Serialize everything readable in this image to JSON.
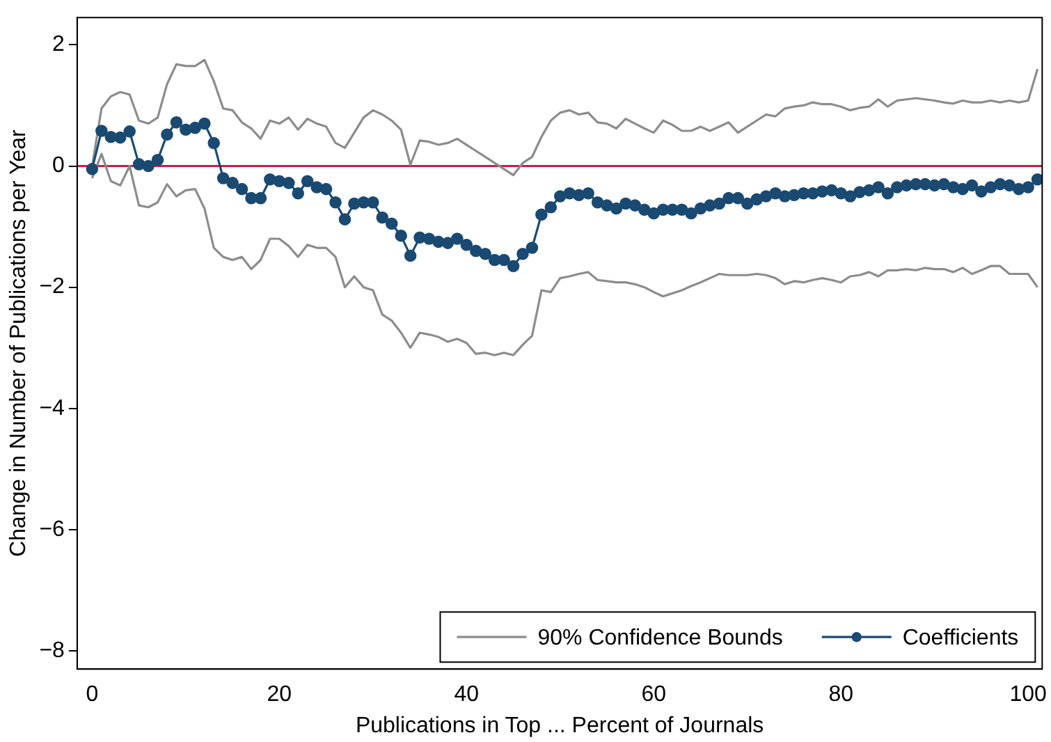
{
  "chart_data": {
    "type": "line",
    "xlabel": "Publications in Top ... Percent of Journals",
    "ylabel": "Change in Number of Publications per Year",
    "x": [
      0,
      1,
      2,
      3,
      4,
      5,
      6,
      7,
      8,
      9,
      10,
      11,
      12,
      13,
      14,
      15,
      16,
      17,
      18,
      19,
      20,
      21,
      22,
      23,
      24,
      25,
      26,
      27,
      28,
      29,
      30,
      31,
      32,
      33,
      34,
      35,
      36,
      37,
      38,
      39,
      40,
      41,
      42,
      43,
      44,
      45,
      46,
      47,
      48,
      49,
      50,
      51,
      52,
      53,
      54,
      55,
      56,
      57,
      58,
      59,
      60,
      61,
      62,
      63,
      64,
      65,
      66,
      67,
      68,
      69,
      70,
      71,
      72,
      73,
      74,
      75,
      76,
      77,
      78,
      79,
      80,
      81,
      82,
      83,
      84,
      85,
      86,
      87,
      88,
      89,
      90,
      91,
      92,
      93,
      94,
      95,
      96,
      97,
      98,
      99,
      100,
      101
    ],
    "xlim": [
      -1.6,
      101.5
    ],
    "xticks": [
      0,
      20,
      40,
      60,
      80,
      100
    ],
    "ylim": [
      -8.3,
      2.45
    ],
    "yticks": [
      -8,
      -6,
      -4,
      -2,
      0,
      2
    ],
    "grid": false,
    "legend": "bottom right",
    "marker": "circle",
    "line_style": "solid",
    "ref_lines": [
      {
        "axis": "y",
        "value": 0,
        "color": "#d0184a"
      }
    ],
    "series": [
      {
        "name": "90% Confidence Bounds",
        "color": "#8c8c8c",
        "marker": "none",
        "values": [
          0.0,
          0.95,
          1.15,
          1.22,
          1.18,
          0.75,
          0.7,
          0.8,
          1.35,
          1.68,
          1.65,
          1.65,
          1.75,
          1.4,
          0.95,
          0.92,
          0.72,
          0.62,
          0.45,
          0.75,
          0.7,
          0.8,
          0.6,
          0.78,
          0.7,
          0.65,
          0.38,
          0.3,
          0.55,
          0.8,
          0.92,
          0.85,
          0.75,
          0.6,
          0.02,
          0.42,
          0.4,
          0.35,
          0.38,
          0.45,
          0.35,
          0.25,
          0.15,
          0.05,
          -0.05,
          -0.15,
          0.05,
          0.15,
          0.48,
          0.75,
          0.88,
          0.92,
          0.85,
          0.88,
          0.72,
          0.7,
          0.62,
          0.78,
          0.7,
          0.62,
          0.55,
          0.75,
          0.68,
          0.58,
          0.58,
          0.65,
          0.58,
          0.65,
          0.72,
          0.55,
          0.65,
          0.75,
          0.85,
          0.82,
          0.95,
          0.98,
          1.0,
          1.05,
          1.02,
          1.02,
          0.98,
          0.92,
          0.96,
          0.98,
          1.1,
          0.98,
          1.08,
          1.1,
          1.12,
          1.1,
          1.08,
          1.05,
          1.03,
          1.08,
          1.05,
          1.05,
          1.08,
          1.05,
          1.08,
          1.05,
          1.08,
          1.6
        ]
      },
      {
        "color": "#8c8c8c",
        "marker": "none",
        "values": [
          -0.2,
          0.2,
          -0.25,
          -0.32,
          0.0,
          -0.65,
          -0.68,
          -0.6,
          -0.3,
          -0.5,
          -0.4,
          -0.38,
          -0.7,
          -1.35,
          -1.5,
          -1.55,
          -1.5,
          -1.7,
          -1.55,
          -1.2,
          -1.2,
          -1.32,
          -1.5,
          -1.3,
          -1.35,
          -1.35,
          -1.5,
          -2.0,
          -1.82,
          -2.0,
          -2.05,
          -2.45,
          -2.55,
          -2.75,
          -3.0,
          -2.75,
          -2.78,
          -2.82,
          -2.9,
          -2.85,
          -2.92,
          -3.1,
          -3.08,
          -3.12,
          -3.08,
          -3.12,
          -2.95,
          -2.8,
          -2.05,
          -2.08,
          -1.85,
          -1.82,
          -1.78,
          -1.75,
          -1.88,
          -1.9,
          -1.92,
          -1.92,
          -1.95,
          -2.0,
          -2.08,
          -2.15,
          -2.1,
          -2.05,
          -1.98,
          -1.92,
          -1.85,
          -1.78,
          -1.8,
          -1.8,
          -1.8,
          -1.78,
          -1.8,
          -1.85,
          -1.95,
          -1.9,
          -1.92,
          -1.88,
          -1.85,
          -1.88,
          -1.92,
          -1.82,
          -1.8,
          -1.75,
          -1.82,
          -1.72,
          -1.72,
          -1.7,
          -1.72,
          -1.68,
          -1.7,
          -1.7,
          -1.75,
          -1.68,
          -1.78,
          -1.72,
          -1.65,
          -1.65,
          -1.78,
          -1.78,
          -1.78,
          -2.0
        ]
      },
      {
        "name": "Coefficients",
        "color": "#1a4a72",
        "values": [
          -0.05,
          0.58,
          0.48,
          0.47,
          0.57,
          0.03,
          0.0,
          0.1,
          0.52,
          0.72,
          0.6,
          0.63,
          0.7,
          0.38,
          -0.2,
          -0.28,
          -0.38,
          -0.53,
          -0.53,
          -0.22,
          -0.25,
          -0.28,
          -0.45,
          -0.25,
          -0.35,
          -0.38,
          -0.6,
          -0.88,
          -0.62,
          -0.6,
          -0.6,
          -0.85,
          -0.95,
          -1.15,
          -1.48,
          -1.18,
          -1.2,
          -1.25,
          -1.27,
          -1.2,
          -1.3,
          -1.4,
          -1.45,
          -1.55,
          -1.55,
          -1.65,
          -1.45,
          -1.35,
          -0.8,
          -0.68,
          -0.5,
          -0.45,
          -0.48,
          -0.45,
          -0.6,
          -0.65,
          -0.7,
          -0.62,
          -0.65,
          -0.72,
          -0.78,
          -0.72,
          -0.72,
          -0.72,
          -0.78,
          -0.7,
          -0.65,
          -0.62,
          -0.53,
          -0.53,
          -0.62,
          -0.55,
          -0.5,
          -0.45,
          -0.5,
          -0.48,
          -0.45,
          -0.45,
          -0.42,
          -0.4,
          -0.45,
          -0.5,
          -0.43,
          -0.4,
          -0.35,
          -0.45,
          -0.35,
          -0.32,
          -0.3,
          -0.3,
          -0.32,
          -0.3,
          -0.35,
          -0.38,
          -0.32,
          -0.42,
          -0.35,
          -0.3,
          -0.32,
          -0.38,
          -0.35,
          -0.22
        ]
      }
    ]
  }
}
